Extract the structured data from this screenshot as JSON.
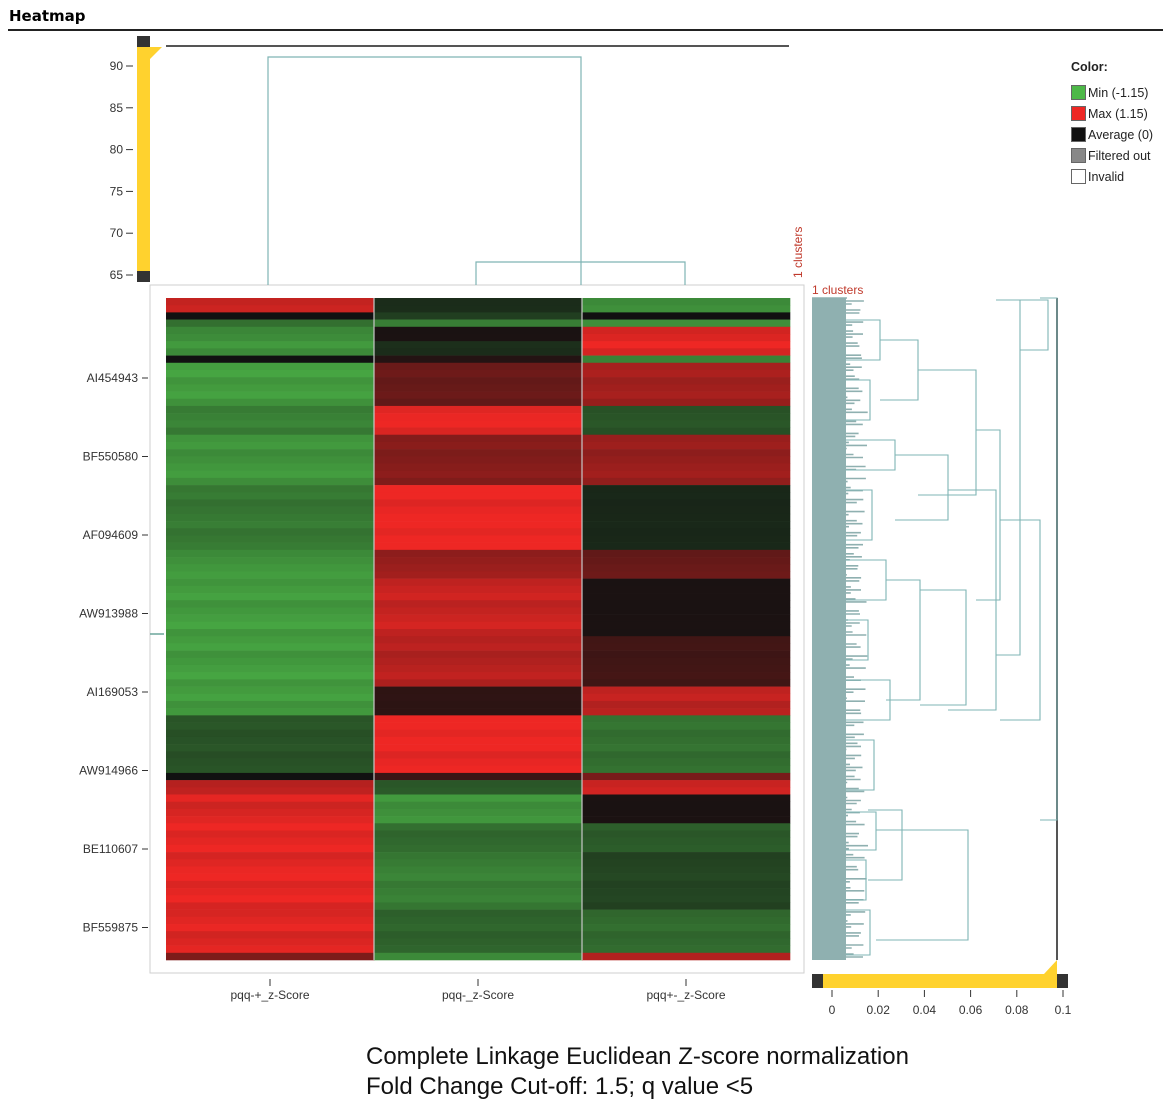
{
  "window": {
    "title": "Heatmap"
  },
  "legend": {
    "title": "Color:",
    "items": [
      {
        "label": "Min (-1.15)",
        "color": "#4db848"
      },
      {
        "label": "Max (1.15)",
        "color": "#ee2724"
      },
      {
        "label": "Average (0)",
        "color": "#111111"
      },
      {
        "label": "Filtered out",
        "color": "#888888"
      },
      {
        "label": "Invalid",
        "color": "#ffffff"
      }
    ]
  },
  "cluster_labels": {
    "columns": "1 clusters",
    "rows": "1 clusters"
  },
  "caption": {
    "line1": "Complete Linkage Euclidean Z-score normalization",
    "line2": "Fold Change Cut-off: 1.5; q value <5"
  },
  "chart_data": {
    "type": "heatmap",
    "columns": [
      "pqq-+_z-Score",
      "pqq-_z-Score",
      "pqq+-_z-Score"
    ],
    "row_labels": [
      "AI454943",
      "BF550580",
      "AF094609",
      "AW913988",
      "AI169053",
      "AW914966",
      "BE110607",
      "BF559875"
    ],
    "color_scale": {
      "min": -1.15,
      "max": 1.15,
      "average": 0,
      "min_color": "#4db848",
      "max_color": "#ee2724",
      "avg_color": "#111111"
    },
    "column_dendrogram_axis": {
      "ticks": [
        90,
        85,
        80,
        75,
        70,
        65
      ],
      "range": [
        63,
        93
      ]
    },
    "row_dendrogram_axis": {
      "ticks": [
        "0",
        "0.02",
        "0.04",
        "0.06",
        "0.08",
        "0.1"
      ],
      "range": [
        0,
        0.1
      ]
    },
    "row_blocks": [
      {
        "rows": 2,
        "values": [
          1.0,
          -0.2,
          -0.9
        ]
      },
      {
        "rows": 1,
        "values": [
          0.0,
          -0.3,
          0.0
        ]
      },
      {
        "rows": 1,
        "values": [
          -0.6,
          -0.7,
          -0.8
        ]
      },
      {
        "rows": 2,
        "values": [
          -0.85,
          0.05,
          1.05
        ]
      },
      {
        "rows": 2,
        "values": [
          -0.9,
          -0.2,
          1.1
        ]
      },
      {
        "rows": 1,
        "values": [
          0.0,
          0.1,
          -0.8
        ]
      },
      {
        "rows": 6,
        "values": [
          -0.95,
          0.45,
          0.75
        ]
      },
      {
        "rows": 4,
        "values": [
          -0.75,
          1.1,
          -0.45
        ]
      },
      {
        "rows": 7,
        "values": [
          -0.9,
          0.6,
          0.7
        ]
      },
      {
        "rows": 9,
        "values": [
          -0.7,
          1.15,
          -0.15
        ]
      },
      {
        "rows": 4,
        "values": [
          -0.9,
          0.7,
          0.45
        ]
      },
      {
        "rows": 8,
        "values": [
          -0.95,
          0.95,
          0.05
        ]
      },
      {
        "rows": 7,
        "values": [
          -0.95,
          0.85,
          0.25
        ]
      },
      {
        "rows": 4,
        "values": [
          -0.95,
          0.15,
          0.9
        ]
      },
      {
        "rows": 8,
        "values": [
          -0.45,
          1.15,
          -0.65
        ]
      },
      {
        "rows": 1,
        "values": [
          0.0,
          0.2,
          0.5
        ]
      },
      {
        "rows": 2,
        "values": [
          0.9,
          -0.5,
          1.0
        ]
      },
      {
        "rows": 4,
        "values": [
          1.05,
          -0.9,
          0.05
        ]
      },
      {
        "rows": 4,
        "values": [
          1.1,
          -0.6,
          -0.5
        ]
      },
      {
        "rows": 8,
        "values": [
          1.1,
          -0.75,
          -0.35
        ]
      },
      {
        "rows": 6,
        "values": [
          1.05,
          -0.55,
          -0.6
        ]
      },
      {
        "rows": 1,
        "values": [
          0.6,
          -0.9,
          0.9
        ]
      }
    ]
  }
}
